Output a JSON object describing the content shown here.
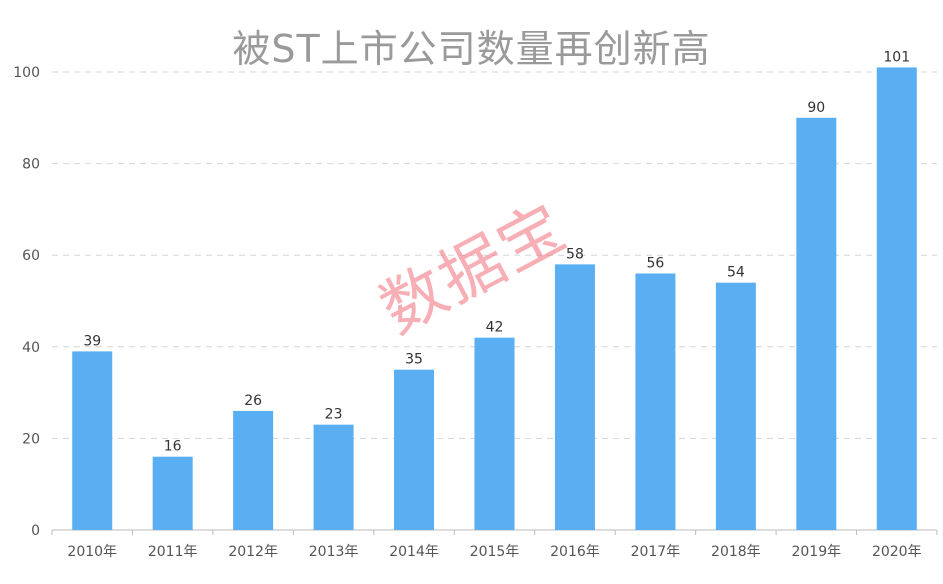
{
  "title": "被ST上市公司数量再创新高",
  "watermark": "数据宝",
  "colors": {
    "bar": "#5aaef2",
    "grid": "#d6d6d6",
    "axis": "#bbbbbb",
    "tick_text": "#555555",
    "label_text": "#333333"
  },
  "chart_data": {
    "type": "bar",
    "title": "被ST上市公司数量再创新高",
    "categories": [
      "2010年",
      "2011年",
      "2012年",
      "2013年",
      "2014年",
      "2015年",
      "2016年",
      "2017年",
      "2018年",
      "2019年",
      "2020年"
    ],
    "values": [
      39,
      16,
      26,
      23,
      35,
      42,
      58,
      56,
      54,
      90,
      101
    ],
    "ylim": [
      0,
      100
    ],
    "yticks": [
      0,
      20,
      40,
      60,
      80,
      100
    ],
    "grid": true,
    "data_labels": true
  }
}
